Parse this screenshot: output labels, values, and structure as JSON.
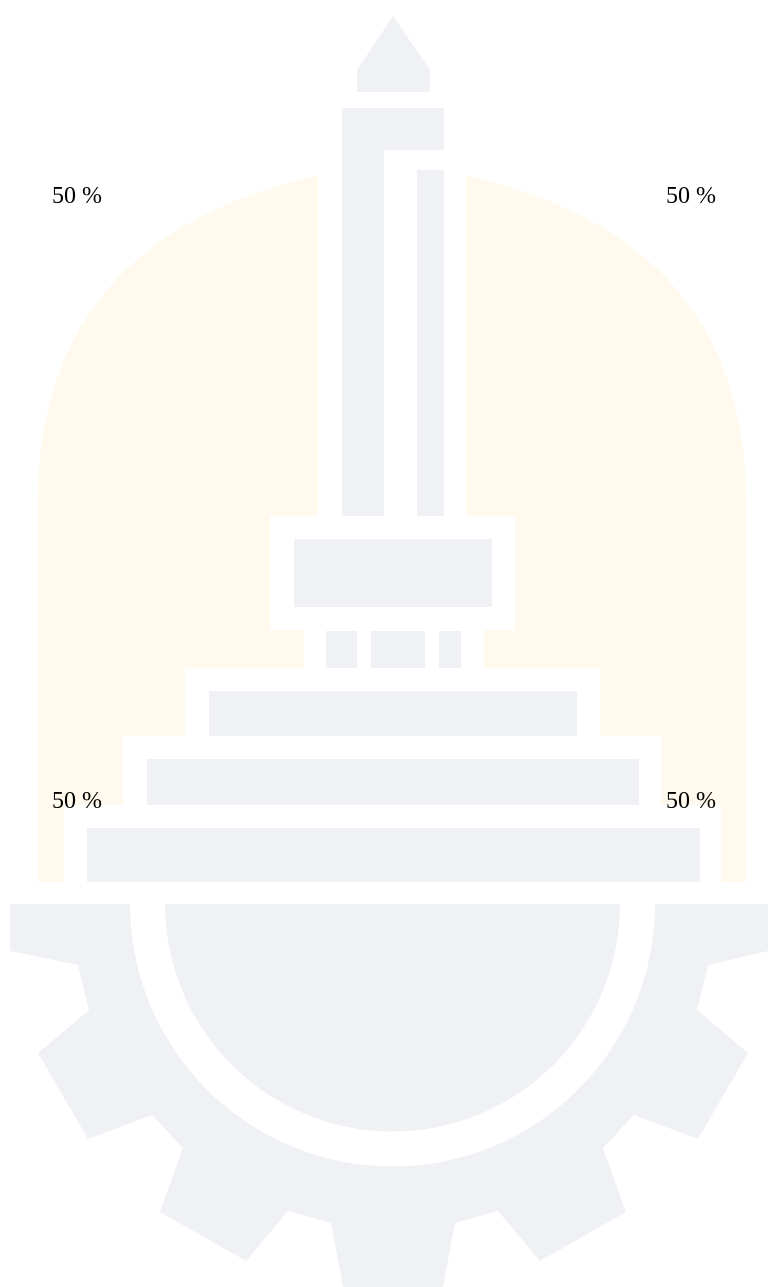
{
  "labels": {
    "top_left": "50 %",
    "top_right": "50 %",
    "bottom_left": "50 %",
    "bottom_right": "50 %"
  },
  "colors": {
    "arch_fill": "#fffaed",
    "emblem_fill": "#f0f1f5",
    "background": "#ffffff",
    "text": "#000000"
  },
  "icons": {
    "emblem": "monument-on-gear-watermark"
  }
}
